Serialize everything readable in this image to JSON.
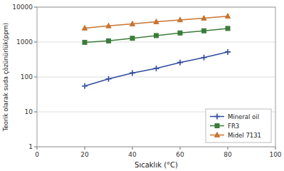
{
  "chart_data": {
    "type": "line",
    "xlabel": "Sıcaklık (°C)",
    "ylabel": "Teorik olarak suda çözünürlük(ppm)",
    "x": [
      20,
      30,
      40,
      50,
      60,
      70,
      80
    ],
    "series": [
      {
        "name": "Mineral oil",
        "color": "#2e4b9e",
        "marker": "plus",
        "values": [
          55,
          88,
          130,
          175,
          260,
          360,
          520
        ]
      },
      {
        "name": "FR3",
        "color": "#3a7d3a",
        "marker": "square",
        "values": [
          980,
          1080,
          1280,
          1530,
          1820,
          2100,
          2450
        ]
      },
      {
        "name": "Midel 7131",
        "color": "#c87533",
        "marker": "triangle",
        "values": [
          2500,
          2900,
          3300,
          3800,
          4300,
          4800,
          5500
        ]
      }
    ],
    "xlim": [
      0,
      100
    ],
    "ylim": [
      1,
      10000
    ],
    "xticks": [
      0,
      20,
      40,
      60,
      80,
      100
    ],
    "yticks": [
      1,
      10,
      100,
      1000,
      10000
    ],
    "log": "y",
    "grid": true,
    "legend": "lower right"
  }
}
